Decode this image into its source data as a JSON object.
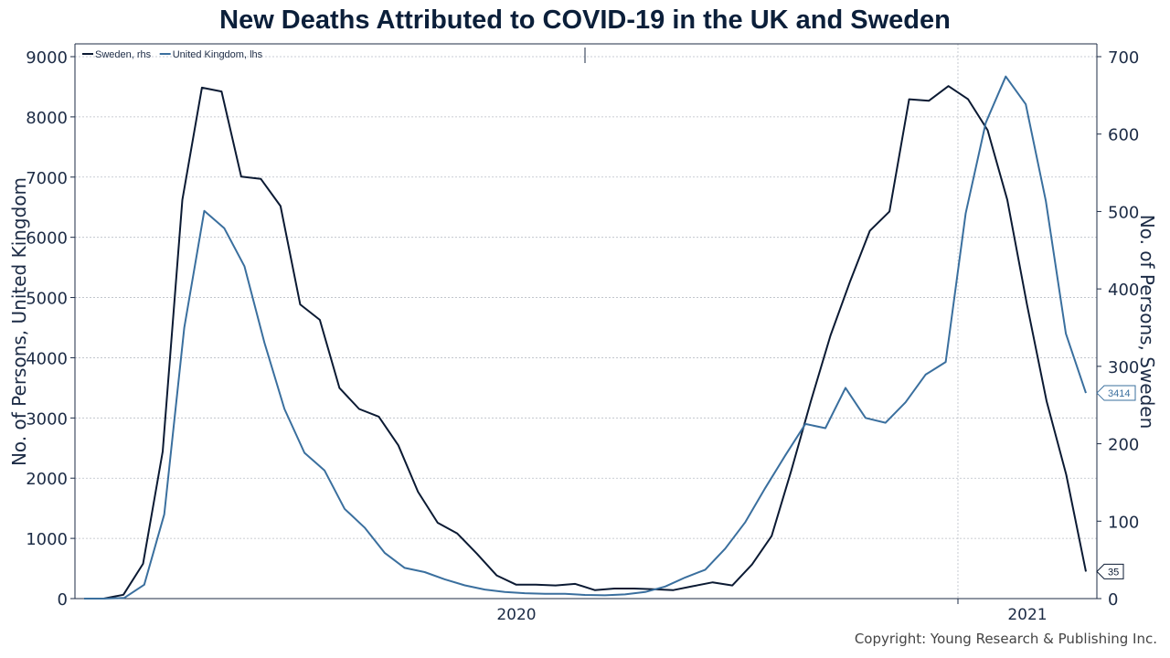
{
  "chart_data": {
    "type": "line",
    "title": "New Deaths Attributed to COVID-19 in the UK and Sweden",
    "ylabel_left": "No. of Persons, United Kingdom",
    "ylabel_right": "No. of Persons, Sweden",
    "ylim_left": [
      0,
      9000
    ],
    "ylim_right": [
      0,
      700
    ],
    "yticks_left": [
      "0",
      "1000",
      "2000",
      "3000",
      "4000",
      "5000",
      "6000",
      "7000",
      "8000",
      "9000"
    ],
    "yticks_right": [
      "0",
      "100",
      "200",
      "300",
      "400",
      "500",
      "600",
      "700"
    ],
    "xticks": [
      "2020",
      "2021"
    ],
    "grid": true,
    "legend_position": "top-left",
    "series": [
      {
        "name": "Sweden, rhs",
        "axis": "right",
        "color": "#0b1a33",
        "values": [
          0,
          0,
          5,
          45,
          190,
          515,
          660,
          655,
          545,
          542,
          507,
          380,
          360,
          272,
          245,
          235,
          198,
          138,
          98,
          84,
          58,
          30,
          18,
          18,
          17,
          19,
          11,
          13,
          13,
          12,
          11,
          16,
          21,
          17,
          44,
          81,
          165,
          255,
          340,
          410,
          475,
          500,
          645,
          643,
          662,
          645,
          605,
          515,
          380,
          255,
          160,
          35
        ]
      },
      {
        "name": "United Kingdom, lhs",
        "axis": "left",
        "color": "#3a6f9e",
        "values": [
          0,
          0,
          10,
          230,
          1400,
          4500,
          6440,
          6150,
          5520,
          4250,
          3150,
          2420,
          2130,
          1490,
          1180,
          760,
          510,
          440,
          320,
          220,
          150,
          110,
          90,
          80,
          80,
          60,
          55,
          70,
          110,
          200,
          350,
          480,
          830,
          1270,
          1840,
          2380,
          2900,
          2830,
          3500,
          3000,
          2920,
          3260,
          3720,
          3930,
          6400,
          7900,
          8670,
          8210,
          6600,
          4400,
          3414
        ]
      }
    ],
    "end_labels": [
      {
        "series": "United Kingdom, lhs",
        "text": "3414"
      },
      {
        "series": "Sweden, rhs",
        "text": "35"
      }
    ]
  },
  "copyright": "Copyright: Young Research & Publishing Inc."
}
